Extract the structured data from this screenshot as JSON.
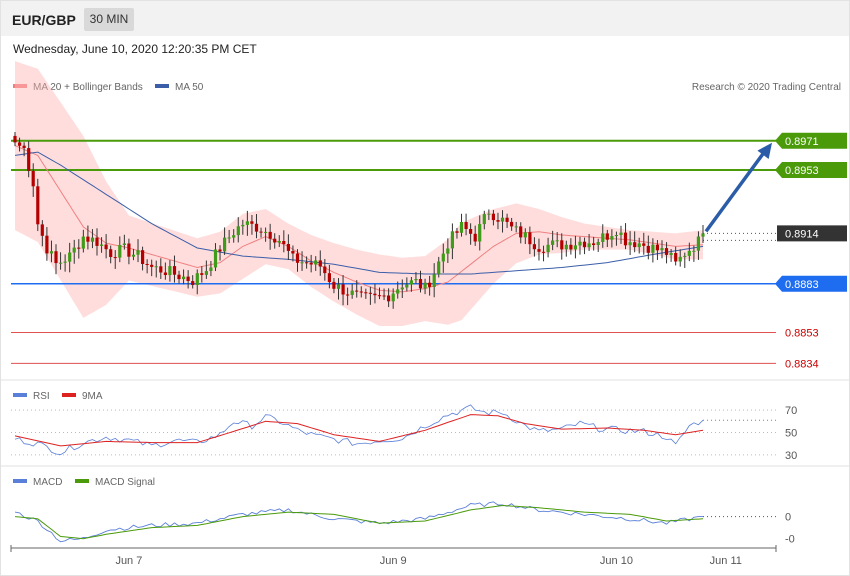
{
  "header": {
    "pair": "EUR/GBP",
    "timeframe": "30 MIN",
    "datetime": "Wednesday, June 10, 2020 12:20:35 PM CET"
  },
  "colors": {
    "bollinger": "#ffb3b3",
    "ma20": "#f08080",
    "ma50": "#3a5ea8",
    "resistance": "#4a9a0a",
    "support": "#1e6cf0",
    "red_level": "#e05050",
    "candle_up": "#3f9b1a",
    "candle_down": "#b30000",
    "rsi": "#5a7fd8",
    "rsi_ma": "#dd2222",
    "macd": "#5a7fd8",
    "macd_signal": "#4a9a0a",
    "arrow": "#2a5ca8"
  },
  "main_legend": {
    "bb": "MA 20 + Bollinger Bands",
    "ma50": "MA 50"
  },
  "copyright": "Research © 2020 Trading Central",
  "rsi_legend": {
    "rsi": "RSI",
    "ma": "9MA"
  },
  "macd_legend": {
    "macd": "MACD",
    "signal": "MACD Signal"
  },
  "levels": [
    {
      "value": 0.8971,
      "label": "0.8971",
      "kind": "resistance"
    },
    {
      "value": 0.8953,
      "label": "0.8953",
      "kind": "resistance"
    },
    {
      "value": 0.8914,
      "label": "0.8914",
      "kind": "current"
    },
    {
      "value": 0.8883,
      "label": "0.8883",
      "kind": "support"
    },
    {
      "value": 0.8853,
      "label": "0.8853",
      "kind": "line"
    },
    {
      "value": 0.8834,
      "label": "0.8834",
      "kind": "line"
    }
  ],
  "rsi_ticks": [
    "70",
    "50",
    "30"
  ],
  "macd_ticks": [
    "0",
    "-0"
  ],
  "x_ticks": [
    "Jun 7",
    "Jun 9",
    "Jun 10",
    "Jun 11"
  ],
  "chart_data": {
    "type": "candlestick",
    "symbol": "EUR/GBP",
    "interval": "30 MIN",
    "price_range": [
      0.8825,
      0.8985
    ],
    "close_anchors": [
      [
        0,
        0.897
      ],
      [
        2,
        0.8966
      ],
      [
        4,
        0.8945
      ],
      [
        5,
        0.892
      ],
      [
        7,
        0.8905
      ],
      [
        9,
        0.8895
      ],
      [
        12,
        0.89
      ],
      [
        15,
        0.8912
      ],
      [
        18,
        0.8909
      ],
      [
        21,
        0.8902
      ],
      [
        24,
        0.8904
      ],
      [
        27,
        0.89
      ],
      [
        30,
        0.8893
      ],
      [
        33,
        0.8891
      ],
      [
        36,
        0.8888
      ],
      [
        39,
        0.8885
      ],
      [
        42,
        0.8892
      ],
      [
        45,
        0.8905
      ],
      [
        48,
        0.8915
      ],
      [
        50,
        0.892
      ],
      [
        53,
        0.8918
      ],
      [
        56,
        0.8914
      ],
      [
        58,
        0.891
      ],
      [
        61,
        0.8898
      ],
      [
        64,
        0.8896
      ],
      [
        67,
        0.8894
      ],
      [
        70,
        0.8882
      ],
      [
        73,
        0.8878
      ],
      [
        76,
        0.8874
      ],
      [
        79,
        0.8874
      ],
      [
        82,
        0.8876
      ],
      [
        85,
        0.8883
      ],
      [
        88,
        0.8884
      ],
      [
        90,
        0.888
      ],
      [
        92,
        0.889
      ],
      [
        95,
        0.8908
      ],
      [
        98,
        0.8918
      ],
      [
        101,
        0.8912
      ],
      [
        104,
        0.8928
      ],
      [
        107,
        0.8922
      ],
      [
        109,
        0.8917
      ],
      [
        112,
        0.8912
      ],
      [
        115,
        0.8906
      ],
      [
        118,
        0.8907
      ],
      [
        121,
        0.8907
      ],
      [
        124,
        0.8909
      ],
      [
        127,
        0.8909
      ],
      [
        130,
        0.8913
      ],
      [
        132,
        0.8917
      ],
      [
        134,
        0.891
      ],
      [
        137,
        0.8908
      ],
      [
        140,
        0.8905
      ],
      [
        143,
        0.8902
      ],
      [
        145,
        0.8895
      ],
      [
        147,
        0.8902
      ],
      [
        150,
        0.8909
      ],
      [
        151,
        0.8914
      ]
    ],
    "ma20_anchors": [
      [
        0,
        0.8968
      ],
      [
        5,
        0.8962
      ],
      [
        10,
        0.894
      ],
      [
        15,
        0.8918
      ],
      [
        20,
        0.8908
      ],
      [
        25,
        0.8905
      ],
      [
        30,
        0.8901
      ],
      [
        35,
        0.8897
      ],
      [
        40,
        0.8893
      ],
      [
        45,
        0.8896
      ],
      [
        50,
        0.8906
      ],
      [
        55,
        0.8912
      ],
      [
        60,
        0.8906
      ],
      [
        65,
        0.8897
      ],
      [
        70,
        0.889
      ],
      [
        75,
        0.8884
      ],
      [
        80,
        0.8879
      ],
      [
        85,
        0.8878
      ],
      [
        90,
        0.888
      ],
      [
        95,
        0.8884
      ],
      [
        100,
        0.8895
      ],
      [
        105,
        0.8906
      ],
      [
        110,
        0.8914
      ],
      [
        115,
        0.8915
      ],
      [
        120,
        0.8913
      ],
      [
        125,
        0.8912
      ],
      [
        130,
        0.8911
      ],
      [
        135,
        0.891
      ],
      [
        140,
        0.8908
      ],
      [
        145,
        0.8906
      ],
      [
        151,
        0.8907
      ]
    ],
    "bb_width_anchors": [
      [
        0,
        0.0052
      ],
      [
        15,
        0.0056
      ],
      [
        25,
        0.002
      ],
      [
        40,
        0.0018
      ],
      [
        50,
        0.002
      ],
      [
        60,
        0.0014
      ],
      [
        70,
        0.0018
      ],
      [
        80,
        0.0022
      ],
      [
        90,
        0.002
      ],
      [
        98,
        0.003
      ],
      [
        106,
        0.0022
      ],
      [
        115,
        0.0014
      ],
      [
        125,
        0.0008
      ],
      [
        135,
        0.0006
      ],
      [
        145,
        0.0008
      ],
      [
        151,
        0.0009
      ]
    ],
    "ma50_anchors": [
      [
        0,
        0.8962
      ],
      [
        5,
        0.8964
      ],
      [
        10,
        0.8956
      ],
      [
        20,
        0.8938
      ],
      [
        30,
        0.892
      ],
      [
        40,
        0.8905
      ],
      [
        50,
        0.89
      ],
      [
        60,
        0.8898
      ],
      [
        70,
        0.8895
      ],
      [
        80,
        0.889
      ],
      [
        90,
        0.8889
      ],
      [
        100,
        0.8889
      ],
      [
        110,
        0.8891
      ],
      [
        120,
        0.8893
      ],
      [
        130,
        0.8896
      ],
      [
        140,
        0.8901
      ],
      [
        151,
        0.8906
      ]
    ],
    "forecast": {
      "from": 0.8914,
      "to": 0.8971,
      "direction": "up"
    },
    "rsi_range": [
      20,
      80
    ],
    "rsi_anchors": [
      [
        0,
        44
      ],
      [
        5,
        40
      ],
      [
        10,
        32
      ],
      [
        15,
        41
      ],
      [
        20,
        46
      ],
      [
        25,
        43
      ],
      [
        30,
        38
      ],
      [
        35,
        43
      ],
      [
        40,
        41
      ],
      [
        45,
        48
      ],
      [
        48,
        60
      ],
      [
        52,
        56
      ],
      [
        55,
        64
      ],
      [
        58,
        60
      ],
      [
        62,
        52
      ],
      [
        66,
        47
      ],
      [
        70,
        44
      ],
      [
        75,
        40
      ],
      [
        80,
        43
      ],
      [
        85,
        45
      ],
      [
        90,
        56
      ],
      [
        95,
        66
      ],
      [
        100,
        72
      ],
      [
        103,
        68
      ],
      [
        107,
        68
      ],
      [
        112,
        56
      ],
      [
        115,
        51
      ],
      [
        120,
        53
      ],
      [
        124,
        58
      ],
      [
        128,
        54
      ],
      [
        133,
        52
      ],
      [
        138,
        51
      ],
      [
        143,
        46
      ],
      [
        145,
        38
      ],
      [
        148,
        56
      ],
      [
        151,
        61
      ]
    ],
    "rsi_ma_anchors": [
      [
        0,
        47
      ],
      [
        10,
        38
      ],
      [
        20,
        42
      ],
      [
        30,
        41
      ],
      [
        40,
        41
      ],
      [
        48,
        51
      ],
      [
        55,
        60
      ],
      [
        62,
        58
      ],
      [
        70,
        48
      ],
      [
        80,
        42
      ],
      [
        90,
        52
      ],
      [
        100,
        66
      ],
      [
        106,
        65
      ],
      [
        112,
        58
      ],
      [
        120,
        53
      ],
      [
        130,
        54
      ],
      [
        138,
        52
      ],
      [
        145,
        48
      ],
      [
        151,
        52
      ]
    ],
    "macd_range": [
      -0.0016,
      0.0012
    ],
    "macd_anchors": [
      [
        0,
        0.0002
      ],
      [
        5,
        -0.0002
      ],
      [
        10,
        -0.0011
      ],
      [
        15,
        -0.001
      ],
      [
        20,
        -0.0006
      ],
      [
        30,
        -0.0004
      ],
      [
        40,
        -0.0003
      ],
      [
        50,
        0.0001
      ],
      [
        60,
        0.0003
      ],
      [
        70,
        -0.0001
      ],
      [
        80,
        -0.0003
      ],
      [
        90,
        -0.0001
      ],
      [
        100,
        0.0005
      ],
      [
        107,
        0.0006
      ],
      [
        115,
        0.0003
      ],
      [
        125,
        0.0001
      ],
      [
        135,
        -0.0001
      ],
      [
        143,
        -0.0003
      ],
      [
        151,
        0.0
      ]
    ],
    "signal_anchors": [
      [
        0,
        0.0
      ],
      [
        5,
        -0.0001
      ],
      [
        10,
        -0.0009
      ],
      [
        15,
        -0.001
      ],
      [
        20,
        -0.0008
      ],
      [
        30,
        -0.0005
      ],
      [
        40,
        -0.0004
      ],
      [
        50,
        0.0
      ],
      [
        60,
        0.0002
      ],
      [
        70,
        0.0001
      ],
      [
        80,
        -0.0003
      ],
      [
        90,
        -0.0002
      ],
      [
        100,
        0.0003
      ],
      [
        107,
        0.0005
      ],
      [
        115,
        0.0004
      ],
      [
        125,
        0.0002
      ],
      [
        135,
        0.0001
      ],
      [
        143,
        -0.0002
      ],
      [
        151,
        -0.0001
      ]
    ],
    "x_axis": [
      "Jun 7",
      "Jun 9",
      "Jun 10",
      "Jun 11"
    ],
    "x_tick_bars": [
      25,
      83,
      132,
      156
    ]
  }
}
